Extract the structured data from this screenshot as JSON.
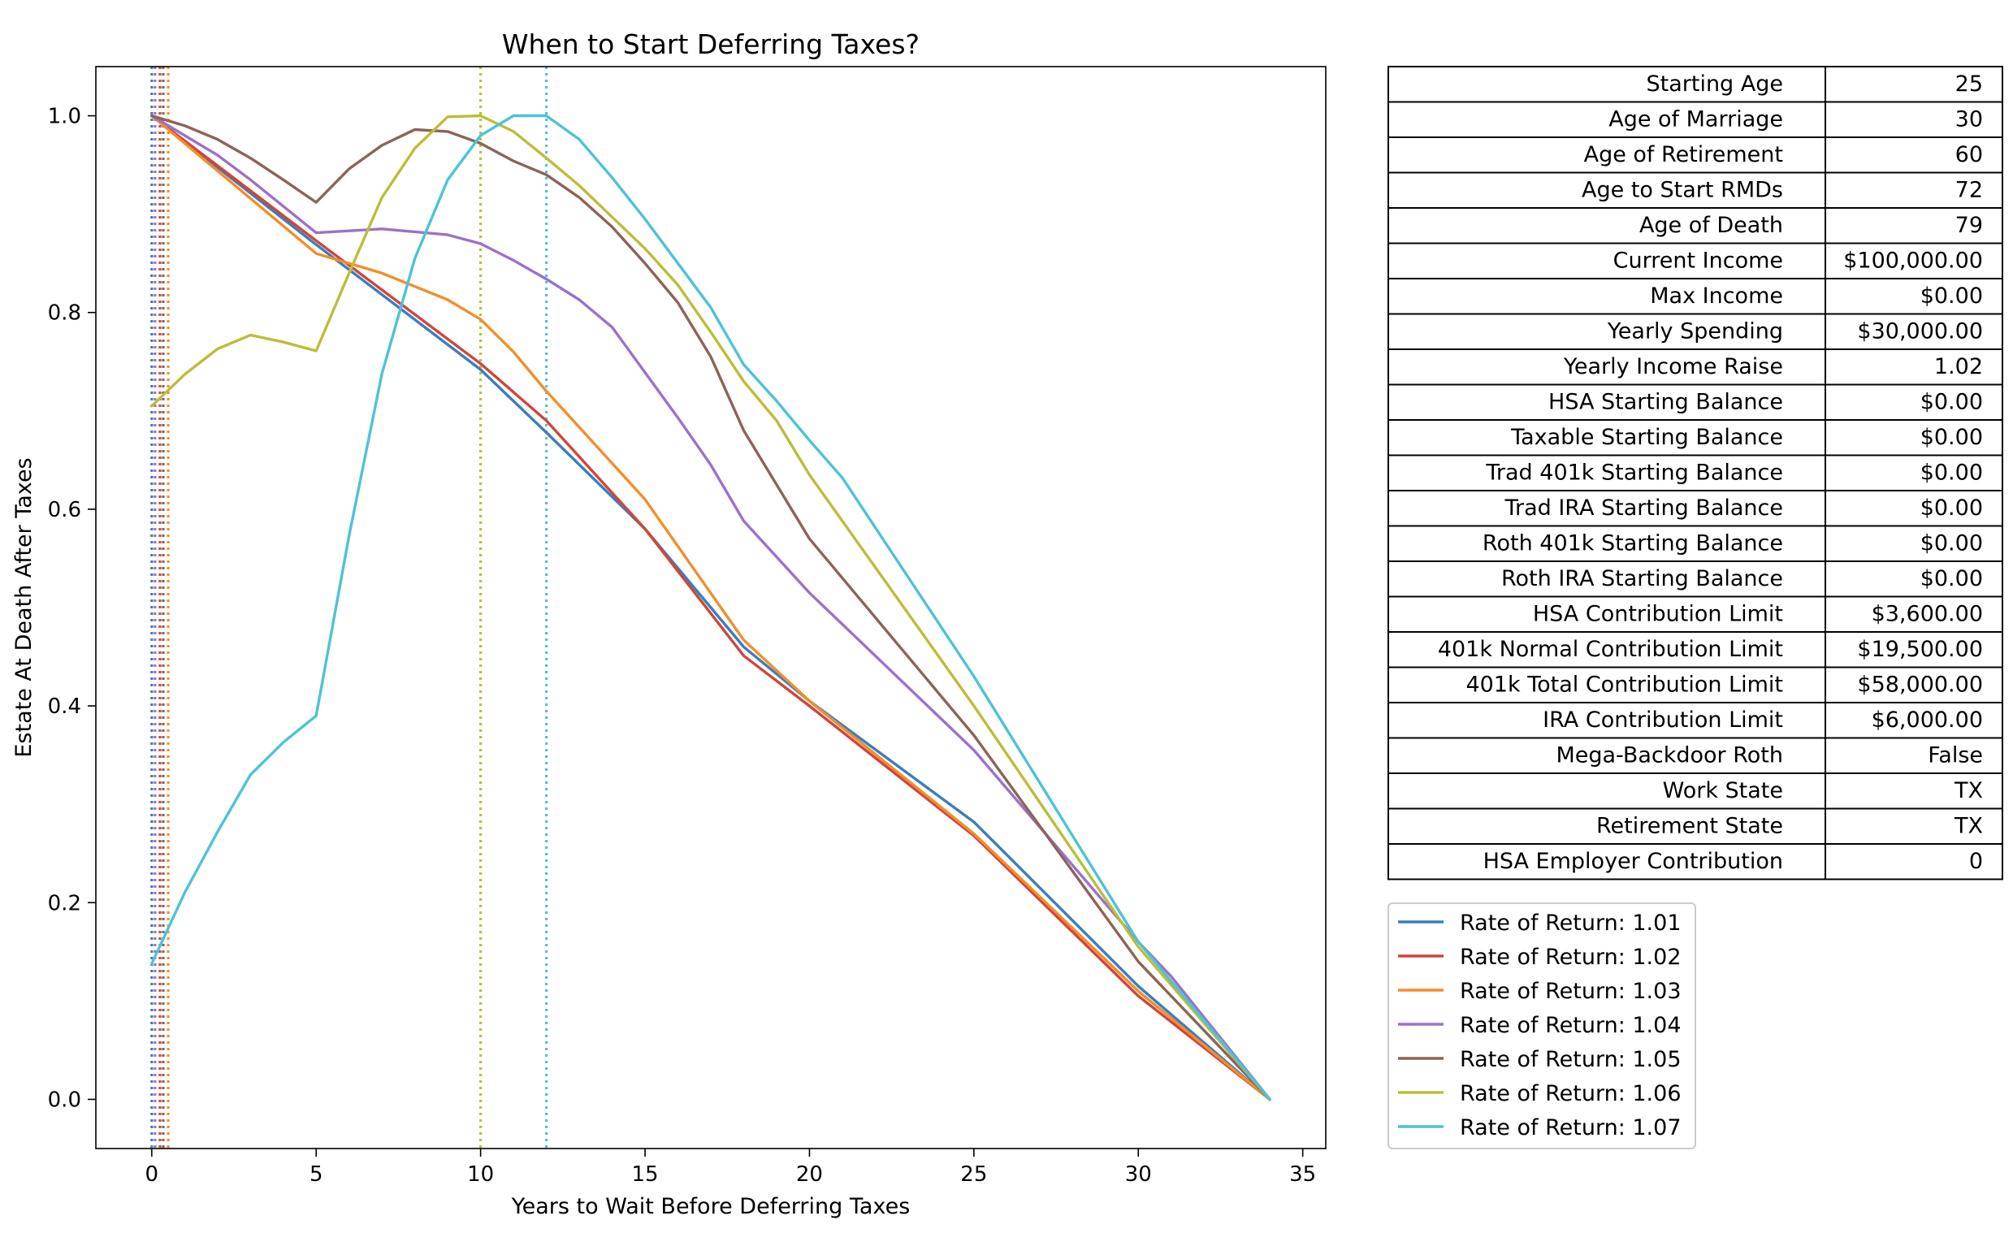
{
  "chart_data": {
    "type": "line",
    "title": "When to Start Deferring Taxes?",
    "xlabel": "Years to Wait Before Deferring Taxes",
    "ylabel": "Estate At Death After Taxes",
    "xlim": [
      -1.7,
      35.7
    ],
    "ylim": [
      -0.05,
      1.05
    ],
    "xticks": [
      0,
      5,
      10,
      15,
      20,
      25,
      30,
      35
    ],
    "yticks": [
      0.0,
      0.2,
      0.4,
      0.6,
      0.8,
      1.0
    ],
    "xtick_labels": [
      "0",
      "5",
      "10",
      "15",
      "20",
      "25",
      "30",
      "35"
    ],
    "ytick_labels": [
      "0.0",
      "0.2",
      "0.4",
      "0.6",
      "0.8",
      "1.0"
    ],
    "grid": false,
    "legend_position": "right-below-table",
    "series": [
      {
        "name": "Rate of Return: 1.01",
        "color": "#3a7ebf",
        "optimum_x": 0,
        "x": [
          0,
          5,
          10,
          12,
          15,
          18,
          20,
          25,
          30,
          34
        ],
        "y": [
          1.0,
          0.869,
          0.742,
          0.678,
          0.58,
          0.46,
          0.405,
          0.282,
          0.115,
          0.0
        ]
      },
      {
        "name": "Rate of Return: 1.02",
        "color": "#d1453a",
        "optimum_x": 0.25,
        "x": [
          0,
          5,
          10,
          12,
          15,
          18,
          20,
          25,
          30,
          34
        ],
        "y": [
          1.0,
          0.873,
          0.748,
          0.69,
          0.58,
          0.451,
          0.4,
          0.268,
          0.105,
          0.0
        ]
      },
      {
        "name": "Rate of Return: 1.03",
        "color": "#f28e2b",
        "optimum_x": 0.5,
        "x": [
          0,
          5,
          7,
          9,
          10,
          11,
          12,
          15,
          18,
          20,
          25,
          30,
          34
        ],
        "y": [
          1.0,
          0.86,
          0.84,
          0.813,
          0.793,
          0.76,
          0.72,
          0.61,
          0.467,
          0.405,
          0.27,
          0.11,
          0.0
        ]
      },
      {
        "name": "Rate of Return: 1.04",
        "color": "#9b72c9",
        "optimum_x": 0.1,
        "x": [
          0,
          2,
          3,
          5,
          7,
          9,
          10,
          11,
          12,
          13,
          14,
          16,
          17,
          18,
          20,
          25,
          30,
          31,
          34
        ],
        "y": [
          1.0,
          0.96,
          0.935,
          0.881,
          0.885,
          0.879,
          0.87,
          0.853,
          0.834,
          0.813,
          0.785,
          0.693,
          0.645,
          0.588,
          0.515,
          0.355,
          0.16,
          0.125,
          0.0
        ]
      },
      {
        "name": "Rate of Return: 1.05",
        "color": "#8c6458",
        "optimum_x": 0.35,
        "x": [
          0,
          1,
          2,
          3,
          4,
          5,
          6,
          7,
          8,
          9,
          10,
          11,
          12,
          13,
          14,
          15,
          16,
          17,
          18,
          20,
          25,
          30,
          34
        ],
        "y": [
          1.0,
          0.99,
          0.976,
          0.957,
          0.935,
          0.912,
          0.946,
          0.97,
          0.986,
          0.984,
          0.972,
          0.954,
          0.94,
          0.917,
          0.887,
          0.85,
          0.81,
          0.755,
          0.68,
          0.57,
          0.37,
          0.14,
          0.0
        ]
      },
      {
        "name": "Rate of Return: 1.06",
        "color": "#bcbd3c",
        "optimum_x": 10,
        "x": [
          0,
          1,
          2,
          3,
          4,
          5,
          6,
          7,
          8,
          9,
          10,
          11,
          12,
          13,
          14,
          15,
          16,
          17,
          18,
          19,
          20,
          25,
          30,
          34
        ],
        "y": [
          0.705,
          0.737,
          0.763,
          0.777,
          0.77,
          0.761,
          0.84,
          0.917,
          0.967,
          0.999,
          1.0,
          0.984,
          0.957,
          0.929,
          0.897,
          0.865,
          0.828,
          0.78,
          0.73,
          0.69,
          0.635,
          0.4,
          0.155,
          0.0
        ]
      },
      {
        "name": "Rate of Return: 1.07",
        "color": "#4fc2d6",
        "optimum_x": 12,
        "x": [
          0,
          1,
          2,
          3,
          4,
          5,
          6,
          7,
          8,
          9,
          10,
          11,
          12,
          13,
          14,
          15,
          16,
          17,
          18,
          19,
          20,
          21,
          25,
          30,
          34
        ],
        "y": [
          0.138,
          0.21,
          0.272,
          0.33,
          0.363,
          0.39,
          0.573,
          0.738,
          0.855,
          0.935,
          0.98,
          1.0,
          1.0,
          0.976,
          0.937,
          0.895,
          0.85,
          0.805,
          0.747,
          0.71,
          0.67,
          0.632,
          0.43,
          0.16,
          0.0
        ]
      }
    ]
  },
  "table": {
    "rows": [
      {
        "label": "Starting Age",
        "value": "25"
      },
      {
        "label": "Age of Marriage",
        "value": "30"
      },
      {
        "label": "Age of Retirement",
        "value": "60"
      },
      {
        "label": "Age to Start RMDs",
        "value": "72"
      },
      {
        "label": "Age of Death",
        "value": "79"
      },
      {
        "label": "Current Income",
        "value": "$100,000.00"
      },
      {
        "label": "Max Income",
        "value": "$0.00"
      },
      {
        "label": "Yearly Spending",
        "value": "$30,000.00"
      },
      {
        "label": "Yearly Income Raise",
        "value": "1.02"
      },
      {
        "label": "HSA Starting Balance",
        "value": "$0.00"
      },
      {
        "label": "Taxable Starting Balance",
        "value": "$0.00"
      },
      {
        "label": "Trad 401k Starting Balance",
        "value": "$0.00"
      },
      {
        "label": "Trad IRA Starting Balance",
        "value": "$0.00"
      },
      {
        "label": "Roth 401k Starting Balance",
        "value": "$0.00"
      },
      {
        "label": "Roth IRA Starting Balance",
        "value": "$0.00"
      },
      {
        "label": "HSA Contribution Limit",
        "value": "$3,600.00"
      },
      {
        "label": "401k Normal Contribution Limit",
        "value": "$19,500.00"
      },
      {
        "label": "401k Total Contribution Limit",
        "value": "$58,000.00"
      },
      {
        "label": "IRA Contribution Limit",
        "value": "$6,000.00"
      },
      {
        "label": "Mega-Backdoor Roth",
        "value": "False"
      },
      {
        "label": "Work State",
        "value": "TX"
      },
      {
        "label": "Retirement State",
        "value": "TX"
      },
      {
        "label": "HSA Employer Contribution",
        "value": "0"
      }
    ]
  }
}
